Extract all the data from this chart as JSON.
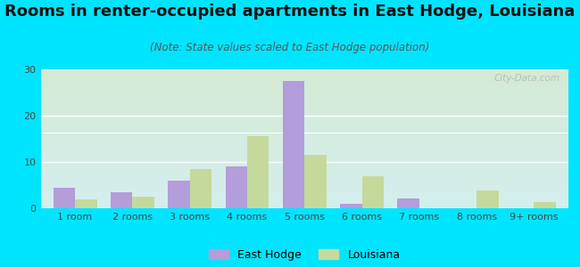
{
  "title": "Rooms in renter-occupied apartments in East Hodge, Louisiana",
  "subtitle": "(Note: State values scaled to East Hodge population)",
  "categories": [
    "1 room",
    "2 rooms",
    "3 rooms",
    "4 rooms",
    "5 rooms",
    "6 rooms",
    "7 rooms",
    "8 rooms",
    "9+ rooms"
  ],
  "east_hodge": [
    4.5,
    3.5,
    6.0,
    9.0,
    27.5,
    1.0,
    2.2,
    0.0,
    0.0
  ],
  "louisiana": [
    2.0,
    2.5,
    8.5,
    15.5,
    11.5,
    7.0,
    0.0,
    3.8,
    1.3
  ],
  "east_hodge_color": "#b39ddb",
  "louisiana_color": "#c5d99b",
  "background_color": "#00e5ff",
  "ylim": [
    0,
    30
  ],
  "yticks": [
    0,
    10,
    20,
    30
  ],
  "bar_width": 0.38,
  "title_fontsize": 13,
  "subtitle_fontsize": 8.5,
  "legend_fontsize": 9,
  "tick_fontsize": 8,
  "watermark_text": "City-Data.com"
}
